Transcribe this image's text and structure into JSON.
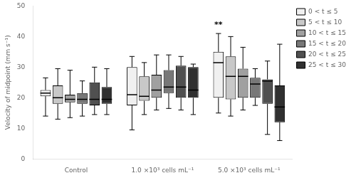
{
  "chart_data": {
    "type": "box",
    "ylabel": "Velocity of midpoint (mm s⁻¹)",
    "ylim": [
      0,
      50
    ],
    "yticks": [
      0,
      10,
      20,
      30,
      40,
      50
    ],
    "grid": false,
    "legend": "right",
    "categories": [
      "Control",
      "1.0 ×10³ cells mL⁻¹",
      "5.0 ×10³ cells mL⁻¹"
    ],
    "series": [
      {
        "name": "0 < t ≤ 5",
        "color": "#f0f0f0",
        "values": [
          {
            "q1": 20.5,
            "median": 21.5,
            "q3": 22.5,
            "whislo": 14.0,
            "whishi": 26.5
          },
          {
            "q1": 17.5,
            "median": 21.0,
            "q3": 30.0,
            "whislo": 9.5,
            "whishi": 33.5
          },
          {
            "q1": 20.0,
            "median": 31.5,
            "q3": 35.0,
            "whislo": 15.0,
            "whishi": 41.0
          }
        ]
      },
      {
        "name": "5 < t ≤ 10",
        "color": "#c8c8c8",
        "values": [
          {
            "q1": 18.0,
            "median": 20.0,
            "q3": 24.0,
            "whislo": 13.0,
            "whishi": 29.5
          },
          {
            "q1": 19.0,
            "median": 20.5,
            "q3": 27.0,
            "whislo": 14.5,
            "whishi": 31.5
          },
          {
            "q1": 19.5,
            "median": 27.0,
            "q3": 33.5,
            "whislo": 14.0,
            "whishi": 40.0
          }
        ]
      },
      {
        "name": "10 < t ≤ 15",
        "color": "#a0a0a0",
        "values": [
          {
            "q1": 18.5,
            "median": 19.5,
            "q3": 21.0,
            "whislo": 13.5,
            "whishi": 29.0
          },
          {
            "q1": 20.0,
            "median": 22.5,
            "q3": 27.5,
            "whislo": 16.0,
            "whishi": 34.0
          },
          {
            "q1": 20.0,
            "median": 27.0,
            "q3": 29.5,
            "whislo": 16.0,
            "whishi": 36.5
          }
        ]
      },
      {
        "name": "15 < t ≤ 20",
        "color": "#787878",
        "values": [
          {
            "q1": 18.0,
            "median": 19.5,
            "q3": 21.5,
            "whislo": 14.0,
            "whishi": 25.5
          },
          {
            "q1": 21.5,
            "median": 23.5,
            "q3": 29.0,
            "whislo": 16.5,
            "whishi": 34.0
          },
          {
            "q1": 20.0,
            "median": 24.5,
            "q3": 26.5,
            "whislo": 17.5,
            "whishi": 29.5
          }
        ]
      },
      {
        "name": "20 < t ≤ 25",
        "color": "#505050",
        "values": [
          {
            "q1": 17.5,
            "median": 19.5,
            "q3": 25.0,
            "whislo": 14.5,
            "whishi": 30.0
          },
          {
            "q1": 20.0,
            "median": 23.5,
            "q3": 30.5,
            "whislo": 16.0,
            "whishi": 33.5
          },
          {
            "q1": 18.0,
            "median": 25.5,
            "q3": 26.0,
            "whislo": 8.0,
            "whishi": 32.0
          }
        ]
      },
      {
        "name": "25 < t ≤ 30",
        "color": "#303030",
        "values": [
          {
            "q1": 18.0,
            "median": 19.5,
            "q3": 23.5,
            "whislo": 14.5,
            "whishi": 29.5
          },
          {
            "q1": 20.0,
            "median": 22.5,
            "q3": 30.0,
            "whislo": 14.5,
            "whishi": 31.0
          },
          {
            "q1": 12.0,
            "median": 17.0,
            "q3": 24.0,
            "whislo": 6.0,
            "whishi": 37.5
          }
        ]
      }
    ],
    "annotations": [
      {
        "text": "**",
        "category": "5.0 ×10³ cells mL⁻¹",
        "series": "0 < t ≤ 5",
        "y": 42.5
      }
    ]
  }
}
